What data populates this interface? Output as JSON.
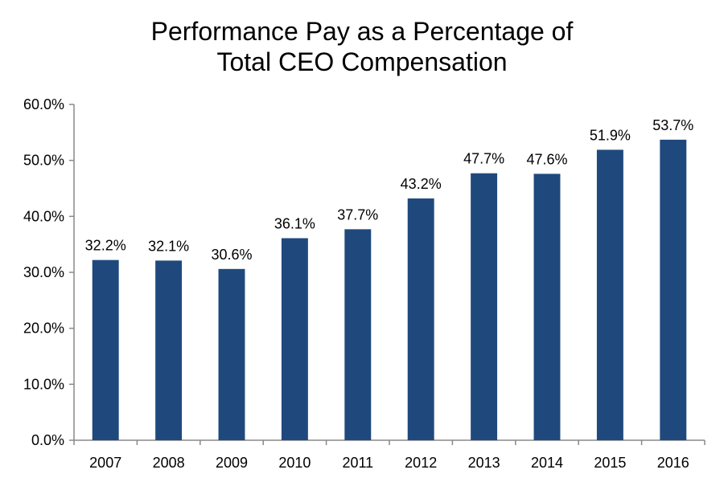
{
  "chart_data": {
    "type": "bar",
    "title_lines": [
      "Performance Pay as a Percentage of",
      "Total CEO Compensation"
    ],
    "categories": [
      "2007",
      "2008",
      "2009",
      "2010",
      "2011",
      "2012",
      "2013",
      "2014",
      "2015",
      "2016"
    ],
    "values": [
      32.2,
      32.1,
      30.6,
      36.1,
      37.7,
      43.2,
      47.7,
      47.6,
      51.9,
      53.7
    ],
    "data_labels": [
      "32.2%",
      "32.1%",
      "30.6%",
      "36.1%",
      "37.7%",
      "43.2%",
      "47.7%",
      "47.6%",
      "51.9%",
      "53.7%"
    ],
    "ylim": [
      0,
      60
    ],
    "yticks": [
      0,
      10,
      20,
      30,
      40,
      50,
      60
    ],
    "ytick_labels": [
      "0.0%",
      "10.0%",
      "20.0%",
      "30.0%",
      "40.0%",
      "50.0%",
      "60.0%"
    ],
    "grid": false,
    "bar_color": "#1f497d",
    "axis_color": "#888888"
  }
}
